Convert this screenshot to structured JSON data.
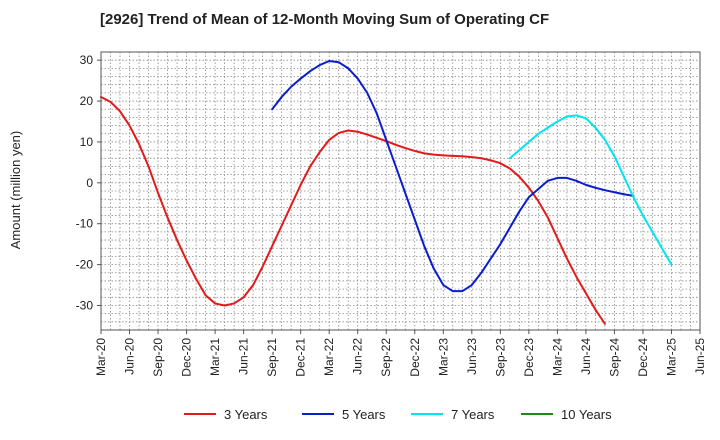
{
  "chart_data": {
    "type": "line",
    "title": "[2926]  Trend of Mean of 12-Month Moving Sum of Operating CF",
    "xlabel": "",
    "ylabel": "Amount (million yen)",
    "ylim": [
      -36,
      32
    ],
    "y_ticks": [
      30,
      20,
      10,
      0,
      -10,
      -20,
      -30
    ],
    "x_tick_labels": [
      "Mar-20",
      "Jun-20",
      "Sep-20",
      "Dec-20",
      "Mar-21",
      "Jun-21",
      "Sep-21",
      "Dec-21",
      "Mar-22",
      "Jun-22",
      "Sep-22",
      "Dec-22",
      "Mar-23",
      "Jun-23",
      "Sep-23",
      "Dec-23",
      "Mar-24",
      "Jun-24",
      "Sep-24",
      "Dec-24",
      "Mar-25",
      "Jun-25"
    ],
    "grid": true,
    "legend_position": "bottom",
    "series": [
      {
        "name": "3 Years",
        "color": "#e31a1c",
        "start_index": 0,
        "values": [
          21,
          19.8,
          17.5,
          14,
          9.5,
          4,
          -2.5,
          -8.5,
          -14,
          -19,
          -23.5,
          -27.5,
          -29.5,
          -30,
          -29.5,
          -28,
          -25,
          -20.5,
          -15.5,
          -10.5,
          -5.5,
          -0.5,
          4,
          7.5,
          10.5,
          12.2,
          12.8,
          12.5,
          11.8,
          11,
          10.2,
          9.3,
          8.5,
          7.8,
          7.2,
          6.9,
          6.7,
          6.6,
          6.5,
          6.3,
          6,
          5.5,
          4.8,
          3.5,
          1.5,
          -1.2,
          -4.5,
          -8.5,
          -13.5,
          -18.5,
          -23,
          -27,
          -31,
          -34.5
        ]
      },
      {
        "name": "5 Years",
        "color": "#0a1ecc",
        "start_index": 18,
        "values": [
          18,
          21,
          23.5,
          25.5,
          27.3,
          28.8,
          29.8,
          29.5,
          28,
          25.5,
          22,
          17,
          10.5,
          4,
          -2.5,
          -9,
          -15.5,
          -21,
          -25,
          -26.5,
          -26.5,
          -25,
          -22,
          -18.5,
          -15,
          -11,
          -7,
          -3.5,
          -1.5,
          0.5,
          1.2,
          1.2,
          0.5,
          -0.5,
          -1.2,
          -1.8,
          -2.3,
          -2.8,
          -3.2
        ]
      },
      {
        "name": "7 Years",
        "color": "#00e5ee",
        "start_index": 43,
        "values": [
          6,
          8,
          10,
          12,
          13.5,
          15,
          16.2,
          16.5,
          15.8,
          13.5,
          10.5,
          6.5,
          1.5,
          -3.5,
          -8,
          -12,
          -16,
          -20
        ]
      },
      {
        "name": "10 Years",
        "color": "#1a8a1a",
        "start_index": 0,
        "values": []
      }
    ]
  }
}
